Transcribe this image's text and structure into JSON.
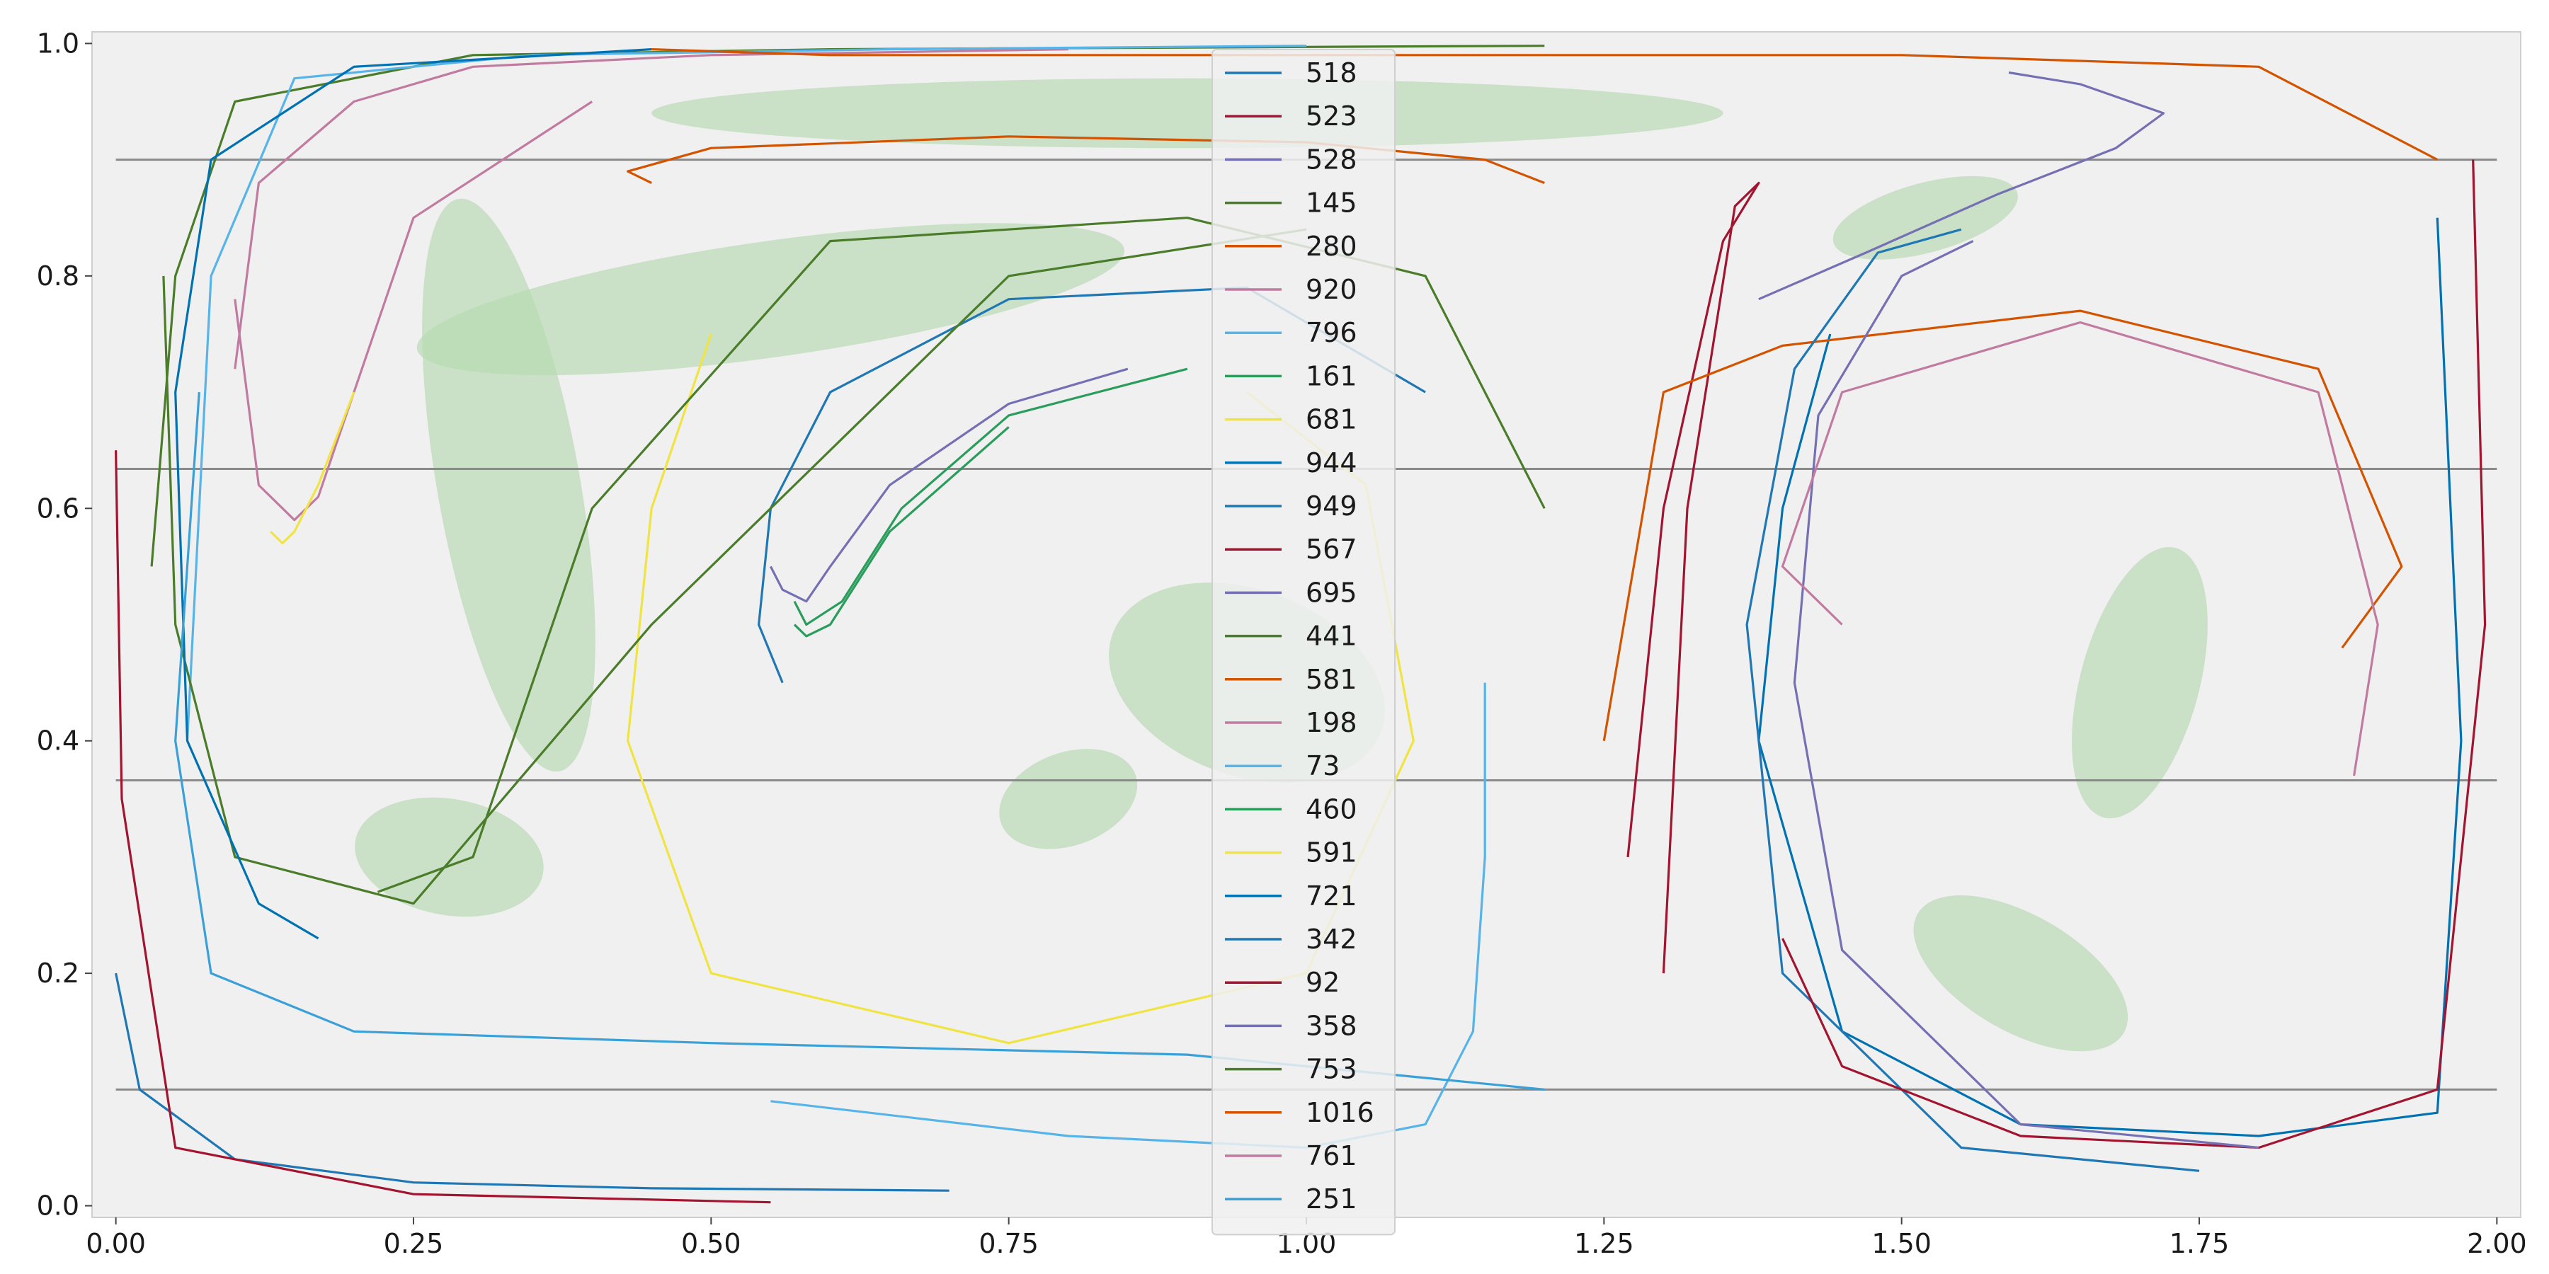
{
  "chart_data": {
    "type": "line",
    "title": "",
    "xlabel": "",
    "ylabel": "",
    "xlim": [
      -0.02,
      2.02
    ],
    "ylim": [
      -0.01,
      1.01
    ],
    "xticks": [
      0.0,
      0.25,
      0.5,
      0.75,
      1.0,
      1.25,
      1.5,
      1.75,
      2.0
    ],
    "xtick_labels": [
      "0.00",
      "0.25",
      "0.50",
      "0.75",
      "1.00",
      "1.25",
      "1.50",
      "1.75",
      "2.00"
    ],
    "yticks": [
      0.0,
      0.2,
      0.4,
      0.6,
      0.8,
      1.0
    ],
    "ytick_labels": [
      "0.0",
      "0.2",
      "0.4",
      "0.6",
      "0.8",
      "1.0"
    ],
    "grid": false,
    "background": "#f0f0f0",
    "region_color": "#b5d8b0",
    "hlines": [
      0.1,
      0.366,
      0.634,
      0.9
    ],
    "hline_color": "#8a8a8a",
    "legend": {
      "placement": "top-center"
    },
    "series": [
      {
        "name": "518",
        "color": "#1f77b4",
        "x": [
          0.0,
          0.02,
          0.1,
          0.25,
          0.45,
          0.7
        ],
        "y": [
          0.2,
          0.1,
          0.04,
          0.02,
          0.015,
          0.013
        ]
      },
      {
        "name": "523",
        "color": "#a2142f",
        "x": [
          0.0,
          0.005,
          0.05,
          0.25,
          0.55
        ],
        "y": [
          0.65,
          0.35,
          0.05,
          0.01,
          0.003
        ]
      },
      {
        "name": "528",
        "color": "#7570b3",
        "x": [
          1.59,
          1.65,
          1.72,
          1.68,
          1.58,
          1.47,
          1.38
        ],
        "y": [
          0.975,
          0.965,
          0.94,
          0.91,
          0.87,
          0.82,
          0.78
        ]
      },
      {
        "name": "145",
        "color": "#4a7c2a",
        "x": [
          0.03,
          0.05,
          0.1,
          0.3,
          0.6,
          1.0,
          1.2
        ],
        "y": [
          0.55,
          0.8,
          0.95,
          0.99,
          0.995,
          0.997,
          0.998
        ]
      },
      {
        "name": "280",
        "color": "#d35400",
        "x": [
          0.45,
          0.43,
          0.5,
          0.75,
          1.0,
          1.15,
          1.2
        ],
        "y": [
          0.88,
          0.89,
          0.91,
          0.92,
          0.915,
          0.9,
          0.88
        ]
      },
      {
        "name": "920",
        "color": "#c27ba0",
        "x": [
          0.1,
          0.12,
          0.2,
          0.3,
          0.5,
          0.8
        ],
        "y": [
          0.72,
          0.88,
          0.95,
          0.98,
          0.99,
          0.995
        ]
      },
      {
        "name": "796",
        "color": "#56b4e9",
        "x": [
          0.06,
          0.08,
          0.15,
          0.35,
          0.65,
          1.0
        ],
        "y": [
          0.4,
          0.8,
          0.97,
          0.99,
          0.995,
          0.998
        ]
      },
      {
        "name": "161",
        "color": "#2a9d5c",
        "x": [
          0.57,
          0.58,
          0.61,
          0.66,
          0.75,
          0.9
        ],
        "y": [
          0.52,
          0.5,
          0.52,
          0.6,
          0.68,
          0.72
        ]
      },
      {
        "name": "681",
        "color": "#f0e442",
        "x": [
          0.5,
          0.45,
          0.43,
          0.5,
          0.75,
          1.0,
          1.09,
          1.05,
          0.95
        ],
        "y": [
          0.75,
          0.6,
          0.4,
          0.2,
          0.14,
          0.2,
          0.4,
          0.62,
          0.7
        ]
      },
      {
        "name": "944",
        "color": "#0072b2",
        "x": [
          1.44,
          1.4,
          1.38,
          1.45,
          1.6,
          1.8,
          1.95,
          1.97,
          1.95
        ],
        "y": [
          0.75,
          0.6,
          0.4,
          0.15,
          0.07,
          0.06,
          0.08,
          0.4,
          0.85
        ]
      },
      {
        "name": "949",
        "color": "#1f77b4",
        "x": [
          0.56,
          0.54,
          0.55,
          0.6,
          0.75,
          0.95,
          1.1
        ],
        "y": [
          0.45,
          0.5,
          0.6,
          0.7,
          0.78,
          0.79,
          0.7
        ]
      },
      {
        "name": "567",
        "color": "#a2142f",
        "x": [
          1.3,
          1.32,
          1.36,
          1.38,
          1.35,
          1.3,
          1.27
        ],
        "y": [
          0.2,
          0.6,
          0.86,
          0.88,
          0.83,
          0.6,
          0.3
        ]
      },
      {
        "name": "695",
        "color": "#7570b3",
        "x": [
          0.55,
          0.56,
          0.58,
          0.6,
          0.65,
          0.75,
          0.85
        ],
        "y": [
          0.55,
          0.53,
          0.52,
          0.55,
          0.62,
          0.69,
          0.72
        ]
      },
      {
        "name": "441",
        "color": "#4a7c2a",
        "x": [
          0.04,
          0.05,
          0.1,
          0.25,
          0.45,
          0.75,
          1.0
        ],
        "y": [
          0.8,
          0.5,
          0.3,
          0.26,
          0.5,
          0.8,
          0.84
        ]
      },
      {
        "name": "581",
        "color": "#d35400",
        "x": [
          1.25,
          1.3,
          1.4,
          1.65,
          1.85,
          1.92,
          1.87
        ],
        "y": [
          0.4,
          0.7,
          0.74,
          0.77,
          0.72,
          0.55,
          0.48
        ]
      },
      {
        "name": "198",
        "color": "#c27ba0",
        "x": [
          0.1,
          0.12,
          0.15,
          0.17,
          0.2,
          0.25,
          0.4
        ],
        "y": [
          0.78,
          0.62,
          0.59,
          0.61,
          0.7,
          0.85,
          0.95
        ]
      },
      {
        "name": "73",
        "color": "#56b4e9",
        "x": [
          1.15,
          1.15,
          1.14,
          1.1,
          1.0,
          0.8,
          0.55
        ],
        "y": [
          0.45,
          0.3,
          0.15,
          0.07,
          0.05,
          0.06,
          0.09
        ]
      },
      {
        "name": "460",
        "color": "#2a9d5c",
        "x": [
          0.57,
          0.58,
          0.6,
          0.65,
          0.75
        ],
        "y": [
          0.5,
          0.49,
          0.5,
          0.58,
          0.67
        ]
      },
      {
        "name": "591",
        "color": "#f0e442",
        "x": [
          0.13,
          0.14,
          0.15,
          0.17,
          0.2
        ],
        "y": [
          0.58,
          0.57,
          0.58,
          0.62,
          0.7
        ]
      },
      {
        "name": "721",
        "color": "#0072b2",
        "x": [
          0.17,
          0.12,
          0.06,
          0.05,
          0.08,
          0.2,
          0.45
        ],
        "y": [
          0.23,
          0.26,
          0.4,
          0.7,
          0.9,
          0.98,
          0.995
        ]
      },
      {
        "name": "342",
        "color": "#1f77b4",
        "x": [
          1.55,
          1.48,
          1.41,
          1.37,
          1.4,
          1.55,
          1.75
        ],
        "y": [
          0.84,
          0.82,
          0.72,
          0.5,
          0.2,
          0.05,
          0.03
        ]
      },
      {
        "name": "92",
        "color": "#a2142f",
        "x": [
          1.4,
          1.45,
          1.6,
          1.8,
          1.95,
          1.99,
          1.98
        ],
        "y": [
          0.23,
          0.12,
          0.06,
          0.05,
          0.1,
          0.5,
          0.9
        ]
      },
      {
        "name": "358",
        "color": "#7570b3",
        "x": [
          1.56,
          1.5,
          1.43,
          1.41,
          1.45,
          1.6,
          1.8
        ],
        "y": [
          0.83,
          0.8,
          0.68,
          0.45,
          0.22,
          0.07,
          0.05
        ]
      },
      {
        "name": "753",
        "color": "#4a7c2a",
        "x": [
          1.2,
          1.1,
          0.9,
          0.6,
          0.4,
          0.3,
          0.22
        ],
        "y": [
          0.6,
          0.8,
          0.85,
          0.83,
          0.6,
          0.3,
          0.27
        ]
      },
      {
        "name": "1016",
        "color": "#d35400",
        "x": [
          0.45,
          0.6,
          0.9,
          1.2,
          1.5,
          1.8,
          1.95
        ],
        "y": [
          0.995,
          0.99,
          0.99,
          0.99,
          0.99,
          0.98,
          0.9
        ]
      },
      {
        "name": "761",
        "color": "#c27ba0",
        "x": [
          1.45,
          1.4,
          1.45,
          1.65,
          1.85,
          1.9,
          1.88
        ],
        "y": [
          0.5,
          0.55,
          0.7,
          0.76,
          0.7,
          0.5,
          0.37
        ]
      },
      {
        "name": "251",
        "color": "#3aa0d8",
        "x": [
          0.07,
          0.05,
          0.08,
          0.2,
          0.5,
          0.9,
          1.2
        ],
        "y": [
          0.7,
          0.4,
          0.2,
          0.15,
          0.14,
          0.13,
          0.1
        ]
      }
    ]
  }
}
